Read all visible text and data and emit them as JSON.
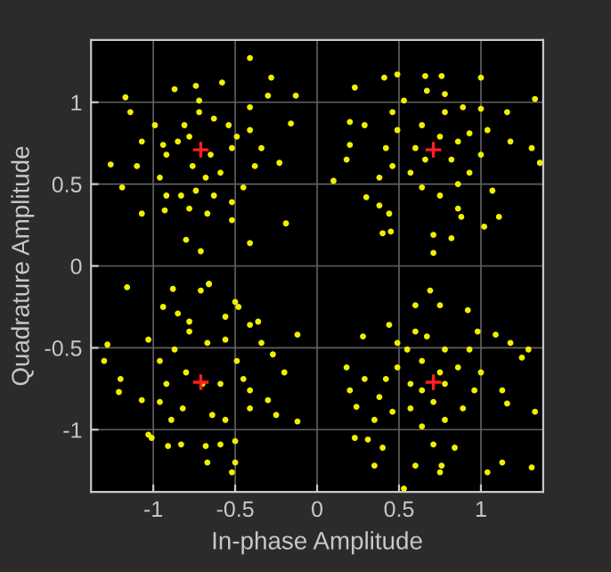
{
  "chart_data": {
    "type": "scatter",
    "xlabel": "In-phase Amplitude",
    "ylabel": "Quadrature Amplitude",
    "xlim": [
      -1.38,
      1.38
    ],
    "ylim": [
      -1.38,
      1.38
    ],
    "xticks": [
      -1,
      -0.5,
      0,
      0.5,
      1
    ],
    "yticks": [
      -1,
      -0.5,
      0,
      0.5,
      1
    ],
    "grid": true,
    "series": [
      {
        "color": "#f0f000",
        "marker": "circle",
        "x": [
          -0.41,
          -0.28,
          -0.13,
          -0.3,
          -1.17,
          -1.26,
          -1.19,
          -1.07,
          -0.93,
          -0.8,
          -0.71,
          -0.66,
          -0.41,
          -0.19,
          0.1,
          -0.23,
          -0.16,
          -0.41,
          -0.58,
          -0.74,
          -0.87,
          -0.99,
          -1.14,
          -1.1,
          -0.96,
          -0.92,
          -0.78,
          -0.63,
          -0.52,
          -0.45,
          -0.38,
          -0.34,
          -0.41,
          -0.54,
          -0.63,
          -0.72,
          -0.78,
          -0.85,
          -0.92,
          -0.65,
          -0.59,
          -0.68,
          -0.76,
          -0.52,
          -0.49,
          -0.81,
          -0.94,
          -1.07,
          -0.74,
          -0.67,
          -0.83,
          -0.52,
          -0.72,
          0.23,
          0.41,
          0.49,
          0.66,
          0.76,
          1.0,
          1.33,
          1.36,
          1.31,
          1.16,
          1.18,
          1.07,
          1.11,
          1.02,
          0.88,
          0.82,
          0.71,
          0.71,
          0.45,
          0.4,
          0.44,
          0.38,
          0.3,
          0.18,
          0.2,
          0.2,
          0.29,
          0.46,
          0.53,
          0.67,
          0.78,
          0.89,
          1.0,
          1.04,
          1.0,
          0.93,
          0.86,
          0.75,
          0.64,
          0.57,
          0.46,
          0.42,
          0.49,
          0.64,
          0.75,
          0.86,
          0.82,
          0.66,
          0.6,
          0.78,
          0.93,
          0.38,
          0.86,
          -1.16,
          -0.88,
          -0.71,
          -0.66,
          -0.5,
          -0.48,
          -0.12,
          -1.28,
          -1.3,
          -1.21,
          -1.2,
          -1.07,
          -1.03,
          -1.01,
          -0.91,
          -0.83,
          -0.67,
          -0.52,
          -0.5,
          -0.5,
          -0.59,
          -0.68,
          -0.12,
          -0.25,
          -0.3,
          -0.2,
          -0.27,
          -0.34,
          -0.41,
          -0.36,
          -0.56,
          -0.78,
          -0.85,
          -0.94,
          -1.03,
          -0.96,
          -0.87,
          -0.78,
          -0.67,
          -0.56,
          -0.49,
          -0.45,
          -0.59,
          -0.7,
          -0.8,
          -0.92,
          -0.96,
          -0.82,
          -0.64,
          -0.56,
          -0.41,
          -0.41,
          -0.89,
          0.69,
          0.6,
          0.75,
          0.92,
          0.28,
          0.44,
          0.18,
          0.2,
          0.29,
          0.24,
          0.23,
          0.31,
          0.4,
          0.35,
          0.53,
          0.6,
          0.75,
          0.76,
          0.84,
          1.04,
          1.13,
          1.31,
          1.33,
          1.16,
          1.13,
          1.25,
          1.29,
          1.18,
          1.09,
          0.98,
          0.93,
          1.0,
          0.96,
          0.89,
          0.78,
          0.71,
          0.64,
          0.57,
          0.46,
          0.38,
          0.42,
          0.49,
          0.55,
          0.6,
          0.67,
          0.78,
          0.86,
          0.78,
          0.64,
          0.57,
          0.64,
          0.75,
          0.49,
          0.71,
          0.35
        ],
        "values": [
          1.27,
          1.15,
          1.04,
          1.04,
          1.03,
          0.62,
          0.48,
          0.32,
          0.34,
          0.16,
          0.09,
          -0.11,
          0.14,
          0.26,
          0.52,
          0.63,
          0.87,
          0.97,
          1.12,
          1.1,
          1.08,
          0.86,
          0.94,
          0.61,
          0.54,
          0.43,
          0.35,
          0.43,
          0.39,
          0.48,
          0.61,
          0.72,
          0.83,
          0.86,
          0.9,
          1.01,
          0.79,
          0.76,
          0.68,
          0.68,
          0.57,
          0.54,
          0.61,
          0.72,
          0.79,
          0.86,
          0.74,
          0.76,
          0.46,
          0.32,
          0.43,
          0.28,
          0.94,
          1.09,
          1.15,
          1.17,
          1.16,
          1.16,
          1.15,
          1.02,
          0.63,
          0.72,
          0.94,
          0.76,
          0.46,
          0.3,
          0.24,
          0.3,
          0.17,
          0.08,
          0.19,
          0.21,
          0.2,
          0.32,
          0.37,
          0.42,
          0.65,
          0.74,
          0.88,
          0.86,
          0.94,
          1.01,
          1.07,
          1.05,
          0.97,
          0.96,
          0.83,
          0.68,
          0.57,
          0.5,
          0.43,
          0.48,
          0.57,
          0.61,
          0.72,
          0.83,
          0.86,
          0.79,
          0.76,
          0.65,
          0.65,
          0.72,
          0.94,
          0.81,
          0.54,
          0.35,
          -0.13,
          -0.14,
          -0.15,
          -0.11,
          -0.22,
          -0.25,
          -0.42,
          -0.48,
          -0.58,
          -0.77,
          -0.69,
          -0.82,
          -1.03,
          -1.05,
          -1.1,
          -1.09,
          -1.2,
          -1.26,
          -1.2,
          -1.07,
          -1.09,
          -1.1,
          -0.95,
          -0.91,
          -0.82,
          -0.65,
          -0.54,
          -0.47,
          -0.36,
          -0.34,
          -0.31,
          -0.34,
          -0.29,
          -0.25,
          -0.45,
          -0.58,
          -0.51,
          -0.4,
          -0.47,
          -0.45,
          -0.58,
          -0.69,
          -0.72,
          -0.72,
          -0.65,
          -0.72,
          -0.83,
          -0.87,
          -0.91,
          -0.94,
          -0.76,
          -0.87,
          -0.94,
          -0.15,
          -0.24,
          -0.24,
          -0.27,
          -0.43,
          -0.36,
          -0.62,
          -0.76,
          -0.69,
          -0.86,
          -1.05,
          -1.06,
          -1.11,
          -1.22,
          -1.36,
          -1.22,
          -1.26,
          -1.22,
          -1.11,
          -1.26,
          -1.2,
          -1.23,
          -0.89,
          -0.84,
          -0.76,
          -0.56,
          -0.51,
          -0.47,
          -0.42,
          -0.4,
          -0.51,
          -0.65,
          -0.76,
          -0.87,
          -0.94,
          -1.09,
          -0.98,
          -0.87,
          -0.89,
          -0.8,
          -0.69,
          -0.62,
          -0.51,
          -0.4,
          -0.43,
          -0.51,
          -0.62,
          -0.72,
          -0.76,
          -0.72,
          -0.58,
          -0.65,
          -0.47,
          -0.83,
          -0.94
        ]
      },
      {
        "color": "#ff2020",
        "marker": "cross",
        "x": [
          -0.71,
          0.71,
          -0.71,
          0.71
        ],
        "values": [
          0.71,
          0.71,
          -0.71,
          -0.71
        ]
      }
    ]
  }
}
